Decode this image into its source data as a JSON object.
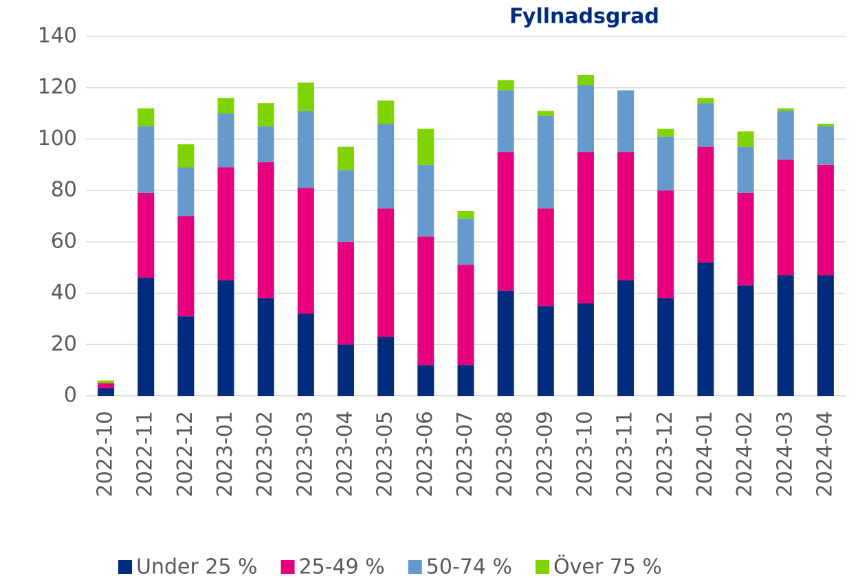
{
  "chart_data": {
    "type": "stacked_bar",
    "title": "Fyllnadsgrad",
    "categories": [
      "2022-10",
      "2022-11",
      "2022-12",
      "2023-01",
      "2023-02",
      "2023-03",
      "2023-04",
      "2023-05",
      "2023-06",
      "2023-07",
      "2023-08",
      "2023-09",
      "2023-10",
      "2023-11",
      "2023-12",
      "2024-01",
      "2024-02",
      "2024-03",
      "2024-04"
    ],
    "series": [
      {
        "name": "Under 25 %",
        "color": "#002B7F",
        "values": [
          3,
          46,
          31,
          45,
          38,
          32,
          20,
          23,
          12,
          12,
          41,
          35,
          36,
          45,
          38,
          52,
          43,
          47,
          47
        ]
      },
      {
        "name": "25-49 %",
        "color": "#E6007E",
        "values": [
          2,
          33,
          39,
          44,
          53,
          49,
          40,
          50,
          50,
          39,
          54,
          38,
          59,
          50,
          42,
          45,
          36,
          45,
          43
        ]
      },
      {
        "name": "50-74 %",
        "color": "#6699CC",
        "values": [
          0,
          26,
          19,
          21,
          14,
          30,
          28,
          33,
          28,
          18,
          24,
          36,
          26,
          24,
          21,
          17,
          18,
          19,
          15
        ]
      },
      {
        "name": "Över 75 %",
        "color": "#7FD400",
        "values": [
          1,
          7,
          9,
          6,
          9,
          11,
          9,
          9,
          14,
          3,
          4,
          2,
          4,
          0,
          3,
          2,
          6,
          1,
          1
        ]
      }
    ],
    "ylim": [
      0,
      140
    ],
    "yticks": [
      0,
      20,
      40,
      60,
      80,
      100,
      120,
      140
    ],
    "grid": true,
    "legend": "bottom"
  }
}
